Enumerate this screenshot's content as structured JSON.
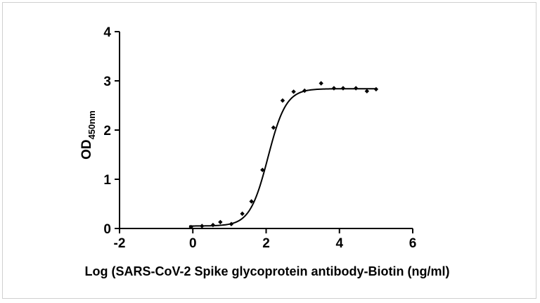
{
  "chart_data": {
    "type": "scatter",
    "title": "",
    "xlabel": "Log (SARS-CoV-2 Spike glycoprotein antibody-Biotin (ng/ml)",
    "ylabel": {
      "main": "OD",
      "subscript": "450nm"
    },
    "xlim": [
      -2,
      6
    ],
    "ylim": [
      0,
      4
    ],
    "x_ticks": [
      "-2",
      "0",
      "2",
      "4",
      "6"
    ],
    "y_ticks": [
      "0",
      "1",
      "2",
      "3",
      "4"
    ],
    "grid": false,
    "legend": "none",
    "series": [
      {
        "type": "scatter",
        "x": [
          -0.05,
          0.25,
          0.55,
          0.75,
          1.05,
          1.35,
          1.6,
          1.9,
          2.2,
          2.45,
          2.75,
          3.05,
          3.5,
          3.85,
          4.1,
          4.45,
          4.75,
          5.0
        ],
        "y": [
          0.03,
          0.05,
          0.07,
          0.13,
          0.09,
          0.3,
          0.55,
          1.19,
          2.05,
          2.6,
          2.78,
          2.8,
          2.95,
          2.85,
          2.85,
          2.85,
          2.79,
          2.83
        ]
      },
      {
        "type": "line",
        "model": "sigmoid",
        "bottom": 0.05,
        "top": 2.84,
        "log_ec50": 2.05,
        "hill_slope": 1.1,
        "x_range": [
          -0.1,
          5.0
        ]
      }
    ],
    "colors": {
      "axis": "#000000",
      "marker": "#000000",
      "curve": "#000000"
    }
  }
}
